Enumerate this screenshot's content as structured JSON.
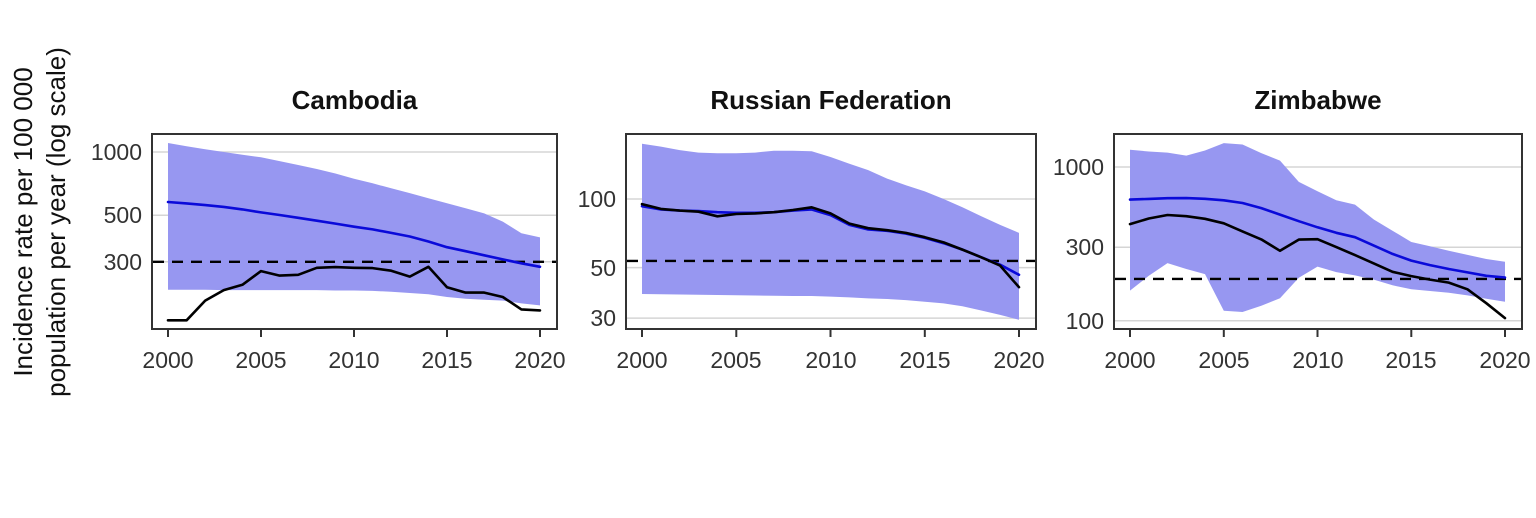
{
  "figure": {
    "y_axis_title": "Incidence rate per 100 000\npopulation per year (log scale)"
  },
  "chart_data": {
    "type": "line",
    "subtype": "small-multiples; 3 panels; log10 y scale; solid blue trend line with shaded blue uncertainty band; solid black observed line; horizontal black dashed reference line",
    "x": [
      2000,
      2001,
      2002,
      2003,
      2004,
      2005,
      2006,
      2007,
      2008,
      2009,
      2010,
      2011,
      2012,
      2013,
      2014,
      2015,
      2016,
      2017,
      2018,
      2019,
      2020
    ],
    "x_ticks": [
      2000,
      2005,
      2010,
      2015,
      2020
    ],
    "ylabel": "Incidence rate per 100 000 population per year (log scale)",
    "legend_position": "none",
    "grid": "horizontal-major-only",
    "panels": [
      {
        "title": "Cambodia",
        "y_ticks": [
          1000,
          500,
          300
        ],
        "y_domain": [
          142,
          1232
        ],
        "dashed_y": 300,
        "series": {
          "blue_line": [
            578,
            569,
            559,
            548,
            533,
            516,
            501,
            486,
            471,
            456,
            441,
            428,
            412,
            396,
            375,
            352,
            337,
            322,
            308,
            295,
            284
          ],
          "black_line": [
            158,
            158,
            196,
            220,
            233,
            271,
            258,
            260,
            281,
            283,
            281,
            280,
            272,
            255,
            284,
            227,
            214,
            214,
            204,
            178,
            176
          ],
          "band_upper": [
            1104,
            1065,
            1030,
            1000,
            970,
            944,
            905,
            867,
            830,
            790,
            746,
            710,
            672,
            637,
            602,
            570,
            540,
            510,
            466,
            410,
            392
          ],
          "band_lower": [
            221,
            221,
            221,
            220,
            220,
            220,
            220,
            220,
            220,
            219,
            219,
            218,
            216,
            213,
            210,
            204,
            200,
            198,
            196,
            190,
            186
          ]
        }
      },
      {
        "title": "Russian Federation",
        "y_ticks": [
          100,
          50,
          30
        ],
        "y_domain": [
          26.6,
          195
        ],
        "dashed_y": 53.5,
        "series": {
          "blue_line": [
            93,
            90,
            89,
            88.5,
            87.5,
            87,
            87,
            87.5,
            89,
            90,
            85,
            77,
            73.5,
            72.5,
            70.5,
            67.5,
            64,
            60,
            55.5,
            51.5,
            46.5
          ],
          "black_line": [
            95,
            90.5,
            89,
            88,
            84,
            86,
            86.5,
            87.5,
            89.5,
            92,
            86.5,
            78,
            74.5,
            73,
            71,
            68,
            64.5,
            60,
            55.5,
            51,
            41
          ],
          "band_upper": [
            175,
            170,
            164,
            160,
            159,
            159,
            160,
            163,
            163,
            162,
            153,
            143,
            134,
            123,
            115,
            108,
            100,
            92,
            84,
            77,
            71
          ],
          "band_lower": [
            38.3,
            38.2,
            38.1,
            38,
            37.9,
            37.8,
            37.7,
            37.6,
            37.5,
            37.5,
            37.3,
            37,
            36.6,
            36.4,
            36,
            35.4,
            34.8,
            33.8,
            32.4,
            31,
            29.5
          ]
        }
      },
      {
        "title": "Zimbabwe",
        "y_ticks": [
          1000,
          300,
          100
        ],
        "y_domain": [
          87,
          1663
        ],
        "dashed_y": 187,
        "series": {
          "blue_line": [
            613,
            620,
            626,
            627,
            621,
            607,
            583,
            540,
            490,
            444,
            405,
            373,
            349,
            308,
            272,
            246,
            230,
            217,
            206,
            196,
            191
          ],
          "black_line": [
            425,
            462,
            487,
            478,
            460,
            430,
            381,
            338,
            285,
            337,
            339,
            301,
            267,
            236,
            208,
            195,
            185,
            177,
            160,
            130,
            104
          ],
          "band_upper": [
            1295,
            1260,
            1240,
            1185,
            1280,
            1430,
            1400,
            1230,
            1100,
            800,
            695,
            607,
            569,
            455,
            385,
            325,
            305,
            285,
            268,
            252,
            242
          ],
          "band_lower": [
            157,
            196,
            237,
            217,
            201,
            116,
            114,
            125,
            140,
            190,
            225,
            207,
            197,
            185,
            170,
            160,
            156,
            152,
            146,
            139,
            133
          ]
        }
      }
    ]
  },
  "colors": {
    "band": "#9797f1",
    "blue_line": "#0a0ad9",
    "black_line": "#000000",
    "dashed_line": "#000000",
    "gridline": "#d5d5d5",
    "panel_border": "#333333",
    "axis_text": "#333333",
    "title_text": "#111111"
  }
}
